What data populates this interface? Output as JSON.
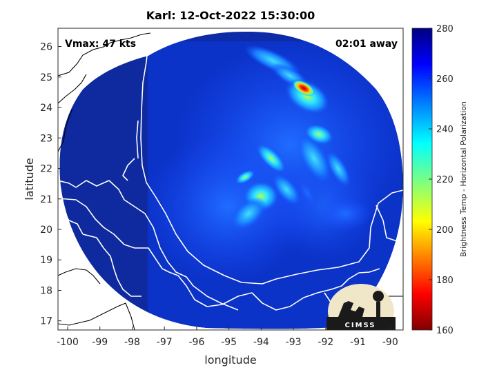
{
  "title": "Karl: 12-Oct-2022 15:30:00",
  "annotations": {
    "vmax": "Vmax: 47 kts",
    "time_away": "02:01 away"
  },
  "x_axis": {
    "label": "longitude",
    "range": [
      -100.3,
      -89.6
    ],
    "ticks": [
      -100,
      -99,
      -98,
      -97,
      -96,
      -95,
      -94,
      -93,
      -92,
      -91,
      -90
    ]
  },
  "y_axis": {
    "label": "latitude",
    "range": [
      16.7,
      26.6
    ],
    "ticks": [
      17,
      18,
      19,
      20,
      21,
      22,
      23,
      24,
      25,
      26
    ]
  },
  "colorbar": {
    "label": "Brightness Temp - Horizontal Polarization",
    "range": [
      160,
      280
    ],
    "ticks": [
      280,
      260,
      240,
      220,
      200,
      180,
      160
    ],
    "colormap": "jet"
  },
  "logo": {
    "text": "CIMSS"
  },
  "colors": {
    "background_field": "#0a2fb8",
    "outside_swath": "#0f1f8a",
    "coastline": "#ffffff",
    "border": "#000000"
  }
}
